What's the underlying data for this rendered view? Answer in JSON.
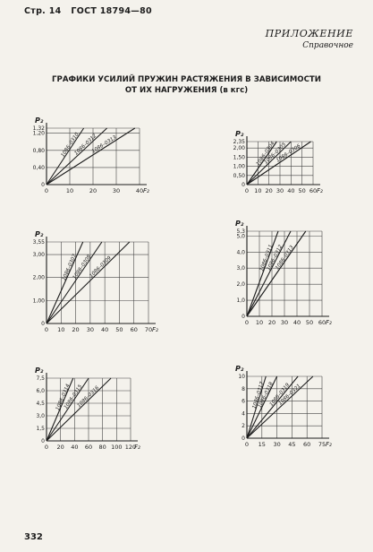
{
  "header": {
    "page_label": "Стр. 14",
    "standard": "ГОСТ 18794—80"
  },
  "appendix": {
    "title": "ПРИЛОЖЕНИЕ",
    "subtitle": "Справочное"
  },
  "figure_title": {
    "line1": "ГРАФИКИ УСИЛИЙ ПРУЖИН РАСТЯЖЕНИЯ В ЗАВИСИМОСТИ",
    "line2": "ОТ ИХ НАГРУЖЕНИЯ (в кгс)"
  },
  "page_number": "332",
  "chart_data": [
    {
      "type": "line",
      "title": "",
      "xlabel": "F₂",
      "ylabel": "P₂",
      "xlim": [
        0,
        40
      ],
      "ylim": [
        0,
        1.32
      ],
      "x_ticks": [
        0,
        10,
        20,
        30,
        40
      ],
      "x_tick_labels": [
        "0",
        "10",
        "20",
        "30",
        "40"
      ],
      "y_ticks": [
        0,
        0.4,
        0.8,
        1.2,
        1.32
      ],
      "y_tick_labels": [
        "0",
        "0,40",
        "0,80",
        "1,20",
        "1,32"
      ],
      "series": [
        {
          "name": "1086–0310",
          "x": [
            0,
            16
          ],
          "y": [
            0,
            1.32
          ]
        },
        {
          "name": "1086–0312",
          "x": [
            0,
            26
          ],
          "y": [
            0,
            1.32
          ]
        },
        {
          "name": "1086–0313",
          "x": [
            0,
            38
          ],
          "y": [
            0,
            1.32
          ]
        }
      ]
    },
    {
      "type": "line",
      "title": "",
      "xlabel": "F₂",
      "ylabel": "P₂",
      "xlim": [
        0,
        60
      ],
      "ylim": [
        0,
        2.35
      ],
      "x_ticks": [
        0,
        10,
        20,
        30,
        40,
        50,
        60
      ],
      "x_tick_labels": [
        "0",
        "10",
        "20",
        "30",
        "40",
        "50",
        "60"
      ],
      "y_ticks": [
        0,
        0.5,
        1.0,
        1.5,
        2.0,
        2.35
      ],
      "y_tick_labels": [
        "0",
        "0,50",
        "1,00",
        "1,50",
        "2,00",
        "2,35"
      ],
      "series": [
        {
          "name": "1086–0304",
          "x": [
            0,
            27
          ],
          "y": [
            0,
            2.35
          ]
        },
        {
          "name": "1086–0305",
          "x": [
            0,
            40
          ],
          "y": [
            0,
            2.35
          ]
        },
        {
          "name": "1086–0306",
          "x": [
            0,
            58
          ],
          "y": [
            0,
            2.35
          ]
        }
      ]
    },
    {
      "type": "line",
      "title": "",
      "xlabel": "F₂",
      "ylabel": "P₂",
      "xlim": [
        0,
        70
      ],
      "ylim": [
        0,
        3.55
      ],
      "x_ticks": [
        0,
        10,
        20,
        30,
        40,
        50,
        60,
        70
      ],
      "x_tick_labels": [
        "0",
        "10",
        "20",
        "30",
        "40",
        "50",
        "60",
        "70"
      ],
      "y_ticks": [
        0,
        1.0,
        2.0,
        3.0,
        3.55
      ],
      "y_tick_labels": [
        "0",
        "1,00",
        "2,00",
        "3,00",
        "3,55"
      ],
      "series": [
        {
          "name": "1086–0307",
          "x": [
            0,
            25
          ],
          "y": [
            0,
            3.55
          ]
        },
        {
          "name": "1086–0308",
          "x": [
            0,
            38
          ],
          "y": [
            0,
            3.55
          ]
        },
        {
          "name": "1086–0309",
          "x": [
            0,
            57
          ],
          "y": [
            0,
            3.55
          ]
        }
      ]
    },
    {
      "type": "line",
      "title": "",
      "xlabel": "F₂",
      "ylabel": "P₂",
      "xlim": [
        0,
        60
      ],
      "ylim": [
        0,
        5.3
      ],
      "x_ticks": [
        0,
        10,
        20,
        30,
        40,
        50,
        60
      ],
      "x_tick_labels": [
        "0",
        "10",
        "20",
        "30",
        "40",
        "50",
        "60"
      ],
      "y_ticks": [
        0,
        1.0,
        2.0,
        3.0,
        4.0,
        5.0,
        5.3
      ],
      "y_tick_labels": [
        "0",
        "1,0",
        "2,0",
        "3,0",
        "4,0",
        "5,0",
        "5,3"
      ],
      "series": [
        {
          "name": "1086–0311",
          "x": [
            0,
            25
          ],
          "y": [
            0,
            5.3
          ]
        },
        {
          "name": "1086–0312",
          "x": [
            0,
            35
          ],
          "y": [
            0,
            5.3
          ]
        },
        {
          "name": "1086–0313",
          "x": [
            0,
            47
          ],
          "y": [
            0,
            5.3
          ]
        }
      ]
    },
    {
      "type": "line",
      "title": "",
      "xlabel": "F₂",
      "ylabel": "P₂",
      "xlim": [
        0,
        120
      ],
      "ylim": [
        0,
        7.5
      ],
      "x_ticks": [
        0,
        20,
        40,
        60,
        80,
        100,
        120
      ],
      "x_tick_labels": [
        "0",
        "20",
        "40",
        "60",
        "80",
        "100",
        "120"
      ],
      "y_ticks": [
        0,
        1.5,
        3.0,
        4.5,
        6.0,
        7.5
      ],
      "y_tick_labels": [
        "0",
        "1,5",
        "3,0",
        "4,5",
        "6,0",
        "7,5"
      ],
      "series": [
        {
          "name": "1086–0314",
          "x": [
            0,
            38
          ],
          "y": [
            0,
            7.5
          ]
        },
        {
          "name": "1086–0315",
          "x": [
            0,
            60
          ],
          "y": [
            0,
            7.5
          ]
        },
        {
          "name": "1086–0316",
          "x": [
            0,
            92
          ],
          "y": [
            0,
            7.5
          ]
        }
      ]
    },
    {
      "type": "line",
      "title": "",
      "xlabel": "F₂",
      "ylabel": "P₂",
      "xlim": [
        0,
        75
      ],
      "ylim": [
        0,
        10
      ],
      "x_ticks": [
        0,
        15,
        30,
        45,
        60,
        75
      ],
      "x_tick_labels": [
        "0",
        "15",
        "30",
        "45",
        "60",
        "75"
      ],
      "y_ticks": [
        0,
        2,
        4,
        6,
        8,
        10
      ],
      "y_tick_labels": [
        "0",
        "2",
        "4",
        "6",
        "8",
        "10"
      ],
      "series": [
        {
          "name": "1086–0317",
          "x": [
            0,
            19
          ],
          "y": [
            0,
            10
          ]
        },
        {
          "name": "1086–0318",
          "x": [
            0,
            30
          ],
          "y": [
            0,
            10
          ]
        },
        {
          "name": "1086–0319",
          "x": [
            0,
            51
          ],
          "y": [
            0,
            10
          ]
        },
        {
          "name": "1086–0321",
          "x": [
            0,
            66
          ],
          "y": [
            0,
            10
          ]
        }
      ]
    }
  ]
}
